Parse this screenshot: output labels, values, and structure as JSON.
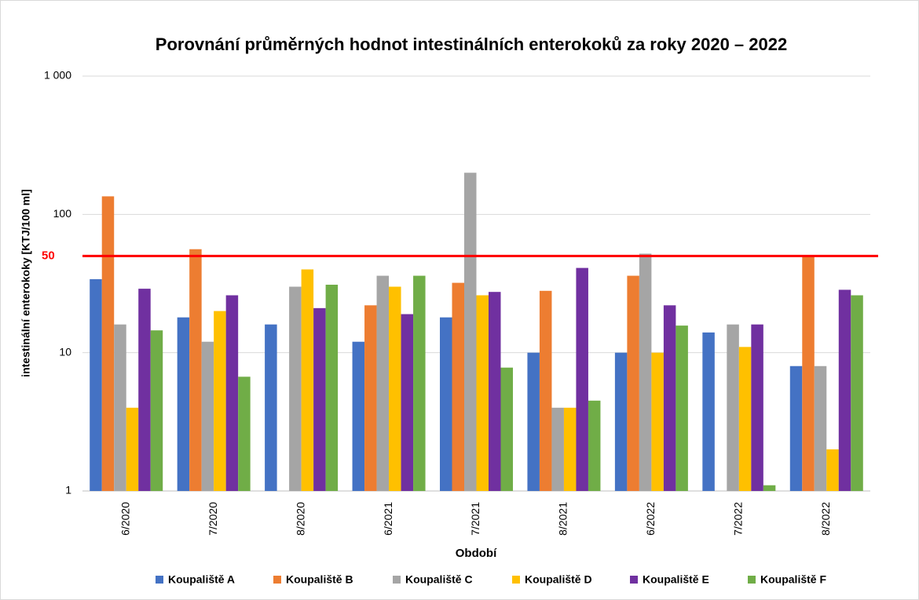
{
  "chart_data": {
    "type": "bar",
    "title": "Porovnání průměrných hodnot intestinálních enterokoků za roky 2020 – 2022",
    "y_label": "intestinální enterokoky [KTJ/100 ml]",
    "x_label": "Období",
    "log_scale": true,
    "grid": true,
    "legend_position": "bottom",
    "categories": [
      "6/2020",
      "7/2020",
      "8/2020",
      "6/2021",
      "7/2021",
      "8/2021",
      "6/2022",
      "7/2022",
      "8/2022"
    ],
    "series": [
      {
        "name": "Koupaliště A",
        "color": "#4472c4",
        "values": [
          34,
          18,
          16,
          12,
          18,
          10,
          10,
          14,
          8
        ]
      },
      {
        "name": "Koupaliště B",
        "color": "#ed7d31",
        "values": [
          135,
          56,
          null,
          22,
          32,
          28,
          36,
          null,
          50
        ]
      },
      {
        "name": "Koupaliště C",
        "color": "#a5a5a5",
        "values": [
          16,
          12,
          30,
          36,
          200,
          4,
          52,
          16,
          8
        ]
      },
      {
        "name": "Koupaliště D",
        "color": "#ffc000",
        "values": [
          4,
          20,
          40,
          30,
          26,
          4,
          10,
          11,
          2
        ]
      },
      {
        "name": "Koupaliště E",
        "color": "#7030a0",
        "values": [
          29,
          26,
          21,
          19,
          27.5,
          41,
          22,
          16,
          28.5
        ]
      },
      {
        "name": "Koupaliště F",
        "color": "#70ad47",
        "values": [
          14.5,
          6.7,
          31,
          36,
          7.8,
          4.5,
          15.7,
          1.1,
          26
        ]
      }
    ],
    "ylim": [
      1,
      1000
    ],
    "yticks": [
      1,
      10,
      100,
      {
        "value": 1000,
        "label": "1 000"
      }
    ],
    "threshold": {
      "value": 50,
      "color": "#ff0000"
    }
  }
}
